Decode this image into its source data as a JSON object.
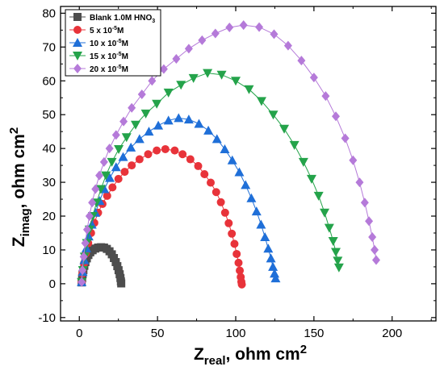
{
  "chart_data": {
    "type": "scatter",
    "xlabel": "Z",
    "xlabel_sub": "real",
    "xlabel_rest": ", ohm cm",
    "xlabel_sup": "2",
    "ylabel": "Z",
    "ylabel_sub": "imag",
    "ylabel_rest": ", ohm cm",
    "ylabel_sup": "2",
    "xlim": [
      -12,
      228
    ],
    "ylim": [
      -11,
      82
    ],
    "xticks": [
      0,
      50,
      100,
      150,
      200
    ],
    "yticks": [
      -10,
      0,
      10,
      20,
      30,
      40,
      50,
      60,
      70,
      80
    ],
    "legend_position": "top-left",
    "series": [
      {
        "name": "Blank 1.0M HNO",
        "name_sub": "3",
        "color": "#4d4d4d",
        "marker": "square",
        "points": [
          [
            1.5,
            0.4
          ],
          [
            1.8,
            1.6
          ],
          [
            2.1,
            2.8
          ],
          [
            2.6,
            4.0
          ],
          [
            3.2,
            5.3
          ],
          [
            3.9,
            6.4
          ],
          [
            4.8,
            7.5
          ],
          [
            5.8,
            8.5
          ],
          [
            7,
            9.3
          ],
          [
            8.5,
            9.9
          ],
          [
            10.2,
            10.4
          ],
          [
            12,
            10.7
          ],
          [
            13.9,
            10.8
          ],
          [
            15.8,
            10.7
          ],
          [
            17.6,
            10.3
          ],
          [
            19.3,
            9.6
          ],
          [
            20.8,
            8.7
          ],
          [
            22.1,
            7.6
          ],
          [
            23.3,
            6.4
          ],
          [
            24.3,
            5.2
          ],
          [
            25.1,
            4.0
          ],
          [
            25.8,
            2.8
          ],
          [
            26.3,
            1.7
          ],
          [
            26.6,
            0.7
          ],
          [
            26.8,
            0.1
          ]
        ]
      },
      {
        "name": "5 x 10",
        "name_sup": "-5",
        "name_rest": "M",
        "color": "#e8333a",
        "marker": "circle",
        "points": [
          [
            1.5,
            0.5
          ],
          [
            2,
            3
          ],
          [
            3,
            6
          ],
          [
            4.2,
            9
          ],
          [
            5.7,
            12
          ],
          [
            7.5,
            15
          ],
          [
            9.6,
            18
          ],
          [
            12,
            21
          ],
          [
            14.8,
            23.6
          ],
          [
            17.8,
            26
          ],
          [
            21.2,
            28.5
          ],
          [
            25,
            31
          ],
          [
            29,
            33.1
          ],
          [
            33.5,
            35
          ],
          [
            38.5,
            36.8
          ],
          [
            44,
            38.3
          ],
          [
            49.5,
            39.4
          ],
          [
            55,
            39.8
          ],
          [
            61,
            39.4
          ],
          [
            66,
            38.3
          ],
          [
            71,
            36.8
          ],
          [
            76,
            34.8
          ],
          [
            80,
            32.4
          ],
          [
            84,
            29.9
          ],
          [
            87.5,
            27.1
          ],
          [
            90.5,
            24.1
          ],
          [
            93.2,
            21
          ],
          [
            95.5,
            17.9
          ],
          [
            97.5,
            14.8
          ],
          [
            99.2,
            11.8
          ],
          [
            100.6,
            8.8
          ],
          [
            101.8,
            6.2
          ],
          [
            102.6,
            3.9
          ],
          [
            103.2,
            2
          ],
          [
            103.6,
            0.6
          ],
          [
            103.9,
            -0.2
          ]
        ]
      },
      {
        "name": "10 x 10",
        "name_sup": "-5",
        "name_rest": "M",
        "color": "#1f6fd8",
        "marker": "triangle-up",
        "points": [
          [
            1.5,
            0.5
          ],
          [
            2.2,
            3.5
          ],
          [
            3.2,
            7
          ],
          [
            4.5,
            10.5
          ],
          [
            6,
            14
          ],
          [
            8,
            17.5
          ],
          [
            10.3,
            21
          ],
          [
            13,
            24.5
          ],
          [
            16,
            28
          ],
          [
            19.5,
            31.3
          ],
          [
            23.5,
            34.5
          ],
          [
            28,
            37.5
          ],
          [
            33,
            40.3
          ],
          [
            38.5,
            42.8
          ],
          [
            44.5,
            45
          ],
          [
            50.5,
            46.8
          ],
          [
            57,
            48.3
          ],
          [
            63.5,
            49
          ],
          [
            70,
            48.6
          ],
          [
            76.5,
            47.3
          ],
          [
            82.5,
            45.3
          ],
          [
            88,
            42.8
          ],
          [
            93,
            39.8
          ],
          [
            97.8,
            36.5
          ],
          [
            102.3,
            33
          ],
          [
            106.3,
            29.2
          ],
          [
            110,
            25.3
          ],
          [
            113.3,
            21.4
          ],
          [
            116.2,
            17.5
          ],
          [
            118.7,
            13.8
          ],
          [
            120.8,
            10.4
          ],
          [
            122.5,
            7.5
          ],
          [
            123.8,
            5
          ],
          [
            124.8,
            3
          ],
          [
            125.5,
            1.6
          ]
        ]
      },
      {
        "name": "15 x 10",
        "name_sup": "-5",
        "name_rest": "M",
        "color": "#24a34a",
        "marker": "triangle-down",
        "points": [
          [
            1.5,
            0.5
          ],
          [
            2.3,
            4
          ],
          [
            3.4,
            8
          ],
          [
            4.8,
            12
          ],
          [
            6.5,
            16
          ],
          [
            8.6,
            20
          ],
          [
            11,
            24
          ],
          [
            13.8,
            28
          ],
          [
            17,
            32
          ],
          [
            20.8,
            36
          ],
          [
            25.2,
            39.8
          ],
          [
            30.2,
            43.3
          ],
          [
            36,
            47
          ],
          [
            42.5,
            50.3
          ],
          [
            49.5,
            53.2
          ],
          [
            57,
            56.5
          ],
          [
            65,
            58.8
          ],
          [
            73,
            60.8
          ],
          [
            82,
            62.3
          ],
          [
            91,
            61.8
          ],
          [
            100,
            60
          ],
          [
            108.5,
            57.5
          ],
          [
            116.5,
            54
          ],
          [
            124,
            50
          ],
          [
            131,
            45.8
          ],
          [
            137.5,
            41
          ],
          [
            143.3,
            36
          ],
          [
            148.5,
            31
          ],
          [
            153,
            26
          ],
          [
            156.8,
            21
          ],
          [
            159.8,
            16.5
          ],
          [
            162.3,
            12.6
          ],
          [
            164,
            9.4
          ],
          [
            165.2,
            6.8
          ],
          [
            166,
            4.8
          ]
        ]
      },
      {
        "name": "20 x 10",
        "name_sup": "-5",
        "name_rest": "M",
        "color": "#b57ad9",
        "marker": "diamond",
        "points": [
          [
            1.5,
            0.5
          ],
          [
            2,
            4
          ],
          [
            2.8,
            8
          ],
          [
            3.8,
            12
          ],
          [
            5,
            16
          ],
          [
            6.5,
            20
          ],
          [
            8.2,
            24
          ],
          [
            10.3,
            28
          ],
          [
            12.8,
            32
          ],
          [
            15.8,
            36
          ],
          [
            19.3,
            40
          ],
          [
            23.5,
            44
          ],
          [
            28.3,
            48
          ],
          [
            33.5,
            52
          ],
          [
            40,
            56
          ],
          [
            46.5,
            60
          ],
          [
            54,
            63.5
          ],
          [
            62,
            66.5
          ],
          [
            70,
            69.5
          ],
          [
            78.5,
            72
          ],
          [
            87,
            74
          ],
          [
            96,
            75.8
          ],
          [
            105,
            76.5
          ],
          [
            115,
            75.9
          ],
          [
            124.5,
            73.8
          ],
          [
            133.5,
            70.4
          ],
          [
            142,
            66
          ],
          [
            150,
            61
          ],
          [
            157.5,
            55.5
          ],
          [
            164,
            49.5
          ],
          [
            170,
            43
          ],
          [
            175,
            36.5
          ],
          [
            179.2,
            30
          ],
          [
            182.5,
            24
          ],
          [
            185.2,
            18.5
          ],
          [
            187.3,
            13.8
          ],
          [
            188.8,
            10
          ],
          [
            189.8,
            7
          ]
        ]
      }
    ]
  }
}
